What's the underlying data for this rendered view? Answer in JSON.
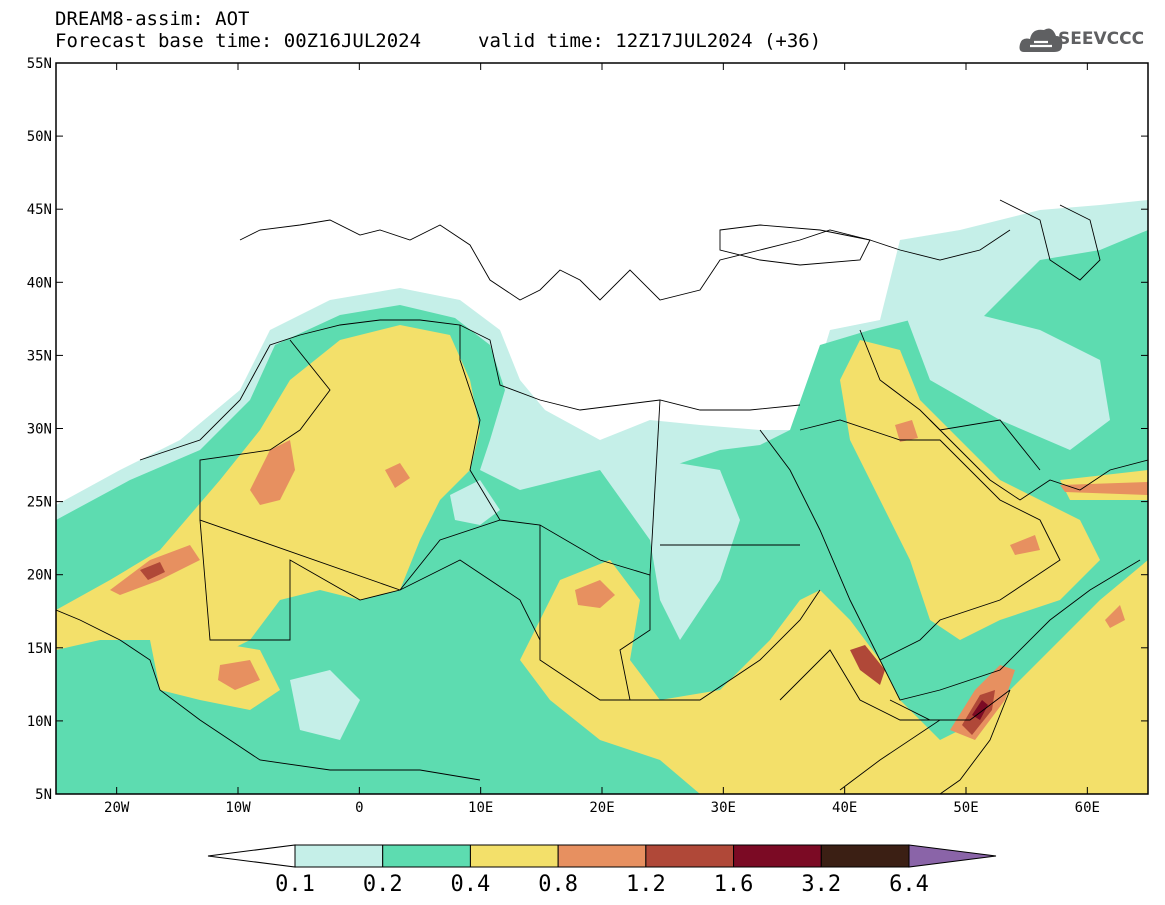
{
  "header": {
    "title": "DREAM8-assim: AOT",
    "base_time": "Forecast base time: 00Z16JUL2024",
    "valid_time": "valid time: 12Z17JUL2024 (+36)"
  },
  "logo": {
    "text": "SEEVCCC",
    "icon": "cloud-icon"
  },
  "map": {
    "projection": "lat-lon",
    "lon_range": [
      -25,
      65
    ],
    "lat_range": [
      5,
      55
    ],
    "lat_ticks": [
      {
        "value": 55,
        "label": "55N"
      },
      {
        "value": 50,
        "label": "50N"
      },
      {
        "value": 45,
        "label": "45N"
      },
      {
        "value": 40,
        "label": "40N"
      },
      {
        "value": 35,
        "label": "35N"
      },
      {
        "value": 30,
        "label": "30N"
      },
      {
        "value": 25,
        "label": "25N"
      },
      {
        "value": 20,
        "label": "20N"
      },
      {
        "value": 15,
        "label": "15N"
      },
      {
        "value": 10,
        "label": "10N"
      },
      {
        "value": 5,
        "label": "5N"
      }
    ],
    "lon_ticks": [
      {
        "value": -20,
        "label": "20W"
      },
      {
        "value": -10,
        "label": "10W"
      },
      {
        "value": 0,
        "label": "0"
      },
      {
        "value": 10,
        "label": "10E"
      },
      {
        "value": 20,
        "label": "20E"
      },
      {
        "value": 30,
        "label": "30E"
      },
      {
        "value": 40,
        "label": "40E"
      },
      {
        "value": 50,
        "label": "50E"
      },
      {
        "value": 60,
        "label": "60E"
      }
    ]
  },
  "colorbar": {
    "colors": [
      "#ffffff",
      "#c5efe8",
      "#5ddcb0",
      "#f3e06a",
      "#e79060",
      "#b04838",
      "#7b0a24",
      "#3b1f14",
      "#8a64a8"
    ],
    "labels": [
      "0.1",
      "0.2",
      "0.4",
      "0.8",
      "1.2",
      "1.6",
      "3.2",
      "6.4"
    ]
  },
  "colors": {
    "c1": "#c5efe8",
    "c2": "#5ddcb0",
    "c3": "#f3e06a",
    "c4": "#e79060",
    "c5": "#b04838",
    "c6": "#7b0a24"
  }
}
